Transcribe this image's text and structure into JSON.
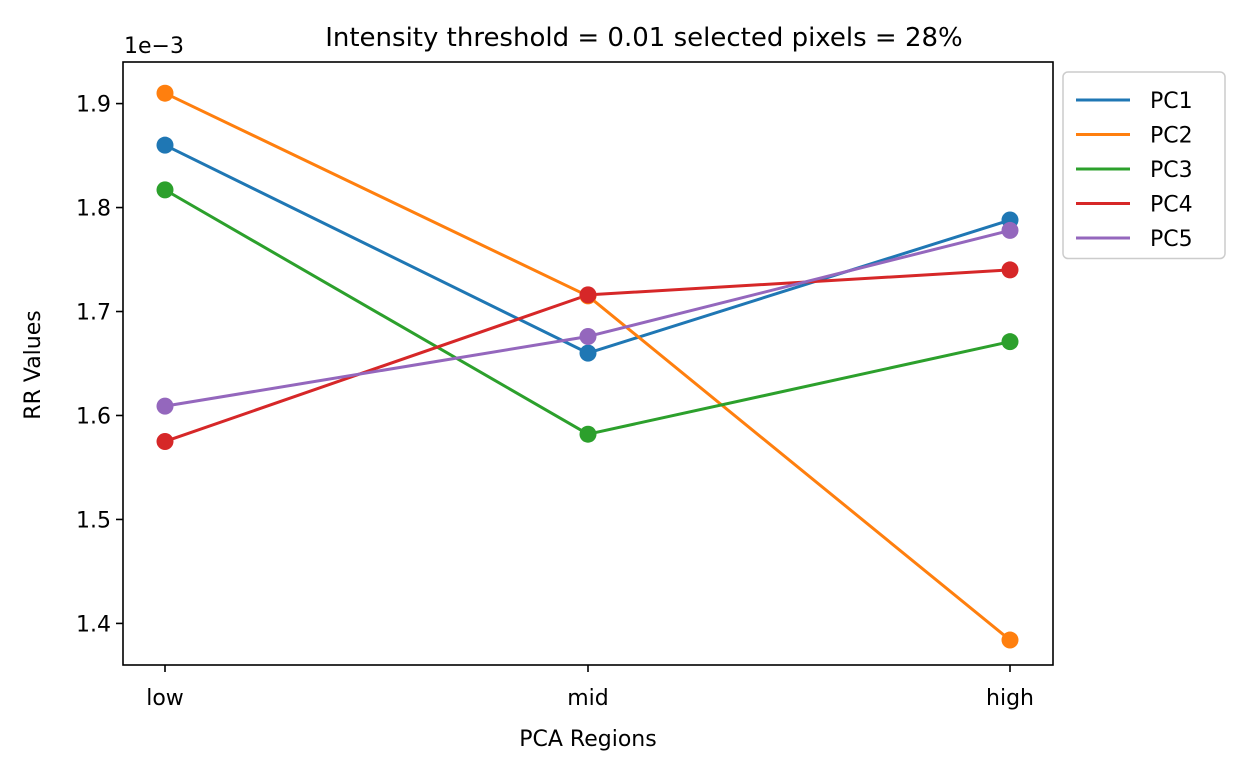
{
  "chart_data": {
    "type": "line",
    "title": "Intensity threshold = 0.01 selected pixels = 28%",
    "xlabel": "PCA Regions",
    "ylabel": "RR Values",
    "y_offset_label": "1e−3",
    "categories": [
      "low",
      "mid",
      "high"
    ],
    "ylim": [
      1.36,
      1.94
    ],
    "yticks": [
      1.4,
      1.5,
      1.6,
      1.7,
      1.8,
      1.9
    ],
    "ytick_labels": [
      "1.4",
      "1.5",
      "1.6",
      "1.7",
      "1.8",
      "1.9"
    ],
    "grid": false,
    "legend_placement": "outside-top-right",
    "series": [
      {
        "name": "PC1",
        "color": "#1f77b4",
        "values": [
          1.86,
          1.66,
          1.788
        ]
      },
      {
        "name": "PC2",
        "color": "#ff7f0e",
        "values": [
          1.91,
          1.715,
          1.384
        ]
      },
      {
        "name": "PC3",
        "color": "#2ca02c",
        "values": [
          1.817,
          1.582,
          1.671
        ]
      },
      {
        "name": "PC4",
        "color": "#d62728",
        "values": [
          1.575,
          1.716,
          1.74
        ]
      },
      {
        "name": "PC5",
        "color": "#9467bd",
        "values": [
          1.609,
          1.676,
          1.778
        ]
      }
    ]
  }
}
